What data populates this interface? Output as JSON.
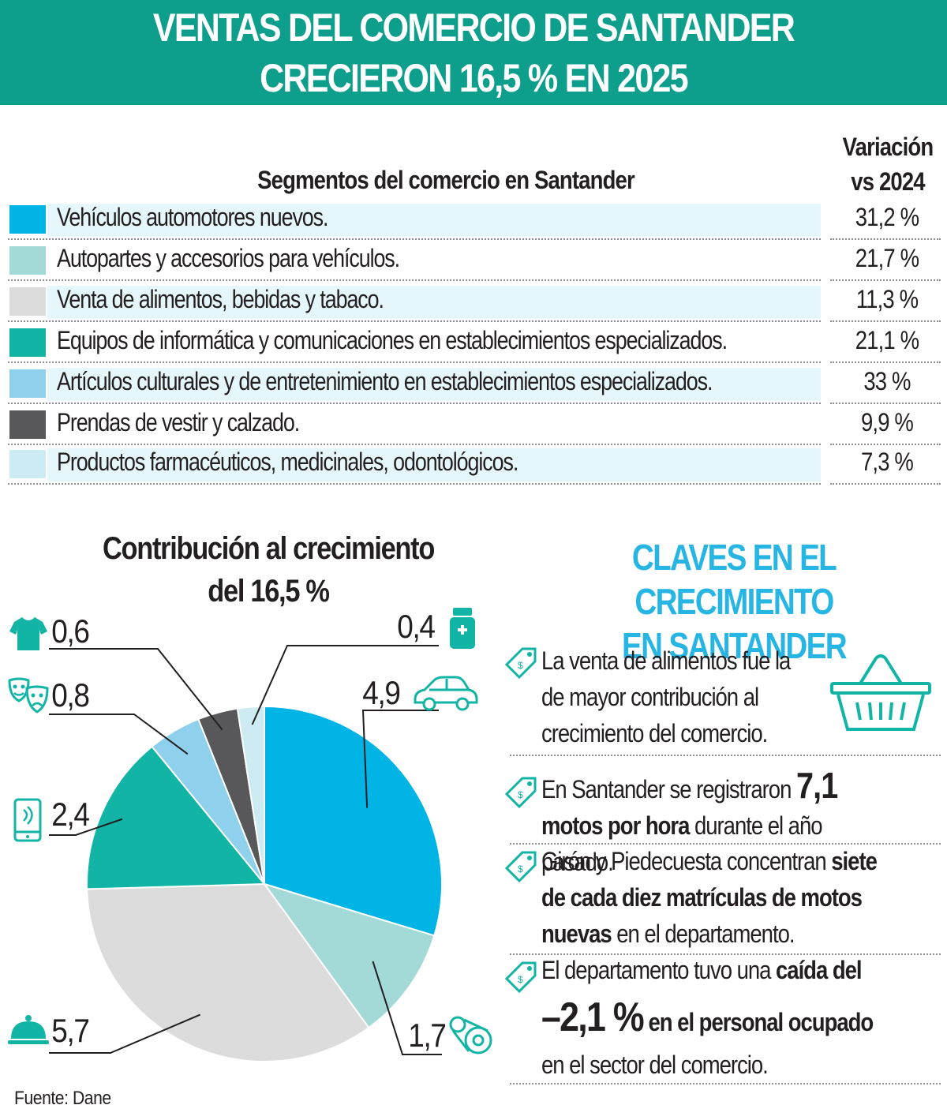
{
  "banner": {
    "line1": "VENTAS DEL COMERCIO DE SANTANDER",
    "line2": "CRECIERON 16,5 % EN 2025"
  },
  "table": {
    "segments_header": "Segmentos del comercio en Santander",
    "variation_header_1": "Variación",
    "variation_header_2": "vs 2024",
    "rows": [
      {
        "label": "Vehículos automotores nuevos.",
        "value": "31,2 %",
        "color": "#00b4e6"
      },
      {
        "label": "Autopartes y accesorios para vehículos.",
        "value": "21,7 %",
        "color": "#a3d9d6"
      },
      {
        "label": "Venta de alimentos, bebidas y tabaco.",
        "value": "11,3 %",
        "color": "#dcdcdd"
      },
      {
        "label": "Equipos de informática y comunicaciones en establecimientos especializados.",
        "value": "21,1 %",
        "color": "#12b5a5"
      },
      {
        "label": "Artículos culturales y de entretenimiento en establecimientos especializados.",
        "value": "33 %",
        "color": "#8fd0ec"
      },
      {
        "label": "Prendas de vestir y calzado.",
        "value": "9,9 %",
        "color": "#58585a"
      },
      {
        "label": "Productos farmacéuticos, medicinales, odontológicos.",
        "value": "7,3 %",
        "color": "#cdebf2"
      }
    ]
  },
  "chart_data": {
    "type": "pie",
    "title": "Contribución al crecimiento del 16,5 %",
    "title_line1": "Contribución al crecimiento",
    "title_line2": "del 16,5 %",
    "slices": [
      {
        "label": "Vehículos automotores nuevos",
        "value": 4.9,
        "display": "4,9",
        "color": "#00b4e6",
        "icon": "car-icon"
      },
      {
        "label": "Autopartes y accesorios para vehículos",
        "value": 1.7,
        "display": "1,7",
        "color": "#a3d9d6",
        "icon": "gear-belt-icon"
      },
      {
        "label": "Venta de alimentos, bebidas y tabaco",
        "value": 5.7,
        "display": "5,7",
        "color": "#dcdcdd",
        "icon": "serving-dish-icon"
      },
      {
        "label": "Equipos de informática y comunicaciones",
        "value": 2.4,
        "display": "2,4",
        "color": "#12b5a5",
        "icon": "smartphone-icon"
      },
      {
        "label": "Artículos culturales y de entretenimiento",
        "value": 0.8,
        "display": "0,8",
        "color": "#8fd0ec",
        "icon": "theater-masks-icon"
      },
      {
        "label": "Prendas de vestir y calzado",
        "value": 0.6,
        "display": "0,6",
        "color": "#58585a",
        "icon": "shirt-icon"
      },
      {
        "label": "Productos farmacéuticos, medicinales, odontológicos",
        "value": 0.4,
        "display": "0,4",
        "color": "#cdebf2",
        "icon": "medicine-bottle-icon"
      }
    ],
    "legend": "none"
  },
  "keys": {
    "title_line1": "CLAVES EN EL CRECIMIENTO",
    "title_line2": "EN SANTANDER",
    "k1": {
      "text": "La venta de alimentos fue la de mayor contribución al crecimiento del comercio."
    },
    "k2": {
      "pre": "En Santander se registraron ",
      "num": "7,1",
      "bold": " motos por hora",
      "post": " durante el año pasado."
    },
    "k3": {
      "pre": "Girón  y Piedecuesta concentran ",
      "bold": "siete de cada diez matrículas de motos nuevas",
      "post": " en el departamento."
    },
    "k4": {
      "pre": "El departamento tuvo una ",
      "bold1": "caída del",
      "num": "–2,1 %",
      "bold2": " en el personal ocupado",
      "post": " en el sector del comercio."
    },
    "icon": "price-tag-icon",
    "basket_icon": "shopping-basket-icon"
  },
  "source": "Fuente: Dane",
  "colors": {
    "banner": "#0d9e8c",
    "accent_blue": "#27b5e3",
    "icon_teal": "#12b5a5"
  }
}
